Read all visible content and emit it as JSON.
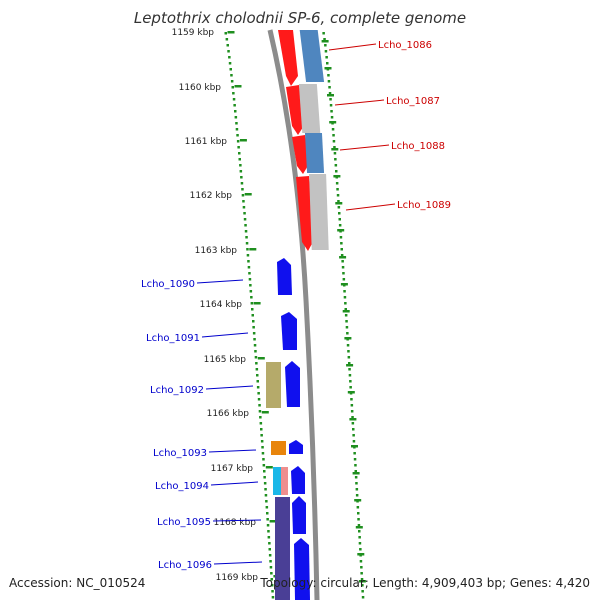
{
  "title": "Leptothrix cholodnii SP-6, complete genome",
  "accession": "Accession: NC_010524",
  "summary": "Topology: circular; Length: 4,909,403 bp; Genes: 4,420",
  "colors": {
    "backbone": "#8c8c8c",
    "tick": "#1f8f1f",
    "forward_label": "#cc0000",
    "reverse_label": "#0000cc",
    "red_gene": "#ff1a1a",
    "steel_gene": "#4f86bf",
    "grey_gene": "#c2c2c2",
    "blue_gene": "#1010ee",
    "olive_gene": "#b5aa6a",
    "orange_gene": "#e8850c",
    "cyan_gene": "#1ab7e8",
    "pink_gene": "#ee8e8e",
    "indigo_gene": "#4a3f96"
  },
  "kbp_ticks": [
    {
      "label": "1159 kbp"
    },
    {
      "label": "1160 kbp"
    },
    {
      "label": "1161 kbp"
    },
    {
      "label": "1162 kbp"
    },
    {
      "label": "1163 kbp"
    },
    {
      "label": "1164 kbp"
    },
    {
      "label": "1165 kbp"
    },
    {
      "label": "1166 kbp"
    },
    {
      "label": "1167 kbp"
    },
    {
      "label": "1168 kbp"
    },
    {
      "label": "1169 kbp"
    }
  ],
  "gene_labels": [
    {
      "text": "Lcho_1086",
      "side": "right"
    },
    {
      "text": "Lcho_1087",
      "side": "right"
    },
    {
      "text": "Lcho_1088",
      "side": "right"
    },
    {
      "text": "Lcho_1089",
      "side": "right"
    },
    {
      "text": "Lcho_1090",
      "side": "left"
    },
    {
      "text": "Lcho_1091",
      "side": "left"
    },
    {
      "text": "Lcho_1092",
      "side": "left"
    },
    {
      "text": "Lcho_1093",
      "side": "left"
    },
    {
      "text": "Lcho_1094",
      "side": "left"
    },
    {
      "text": "Lcho_1095",
      "side": "left"
    },
    {
      "text": "Lcho_1096",
      "side": "left"
    }
  ]
}
